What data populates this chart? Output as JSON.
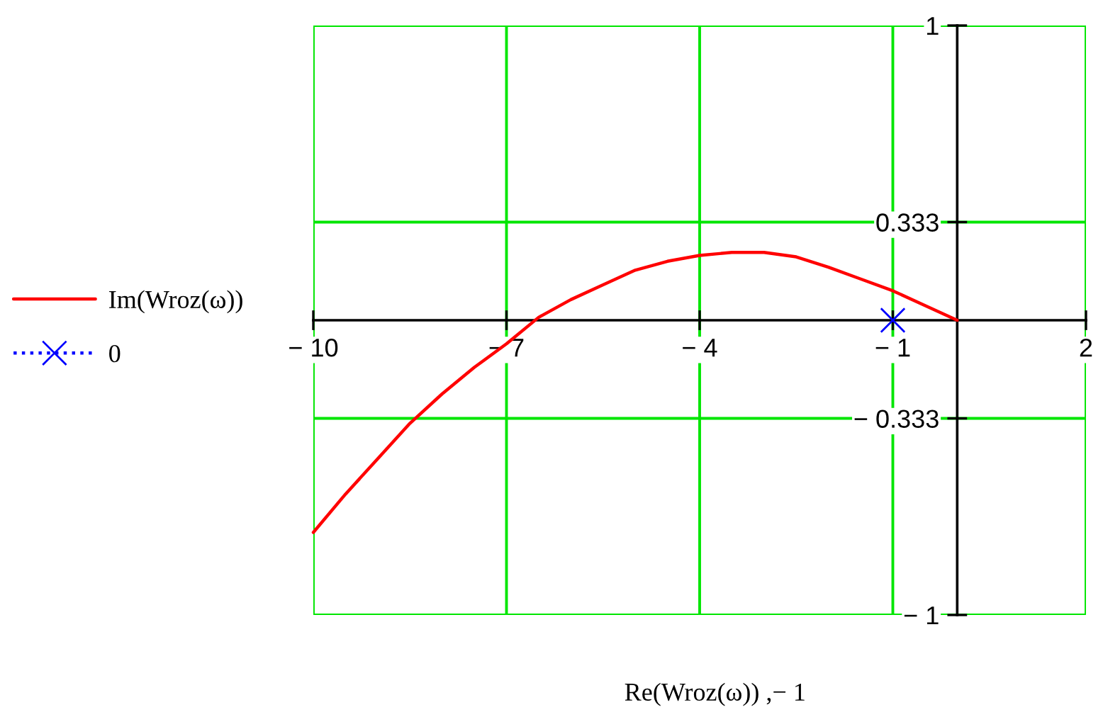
{
  "chart_data": {
    "type": "line",
    "xlabel": "Re(Wroz(ω)) ,− 1",
    "xlim": [
      -10,
      2
    ],
    "ylim": [
      -1,
      1
    ],
    "xticks": [
      {
        "value": -10,
        "label": "− 10"
      },
      {
        "value": -7,
        "label": "− 7"
      },
      {
        "value": -4,
        "label": "− 4"
      },
      {
        "value": -1,
        "label": "− 1"
      },
      2
    ],
    "yticks": [
      {
        "value": -1,
        "label": "− 1"
      },
      {
        "value": -0.333,
        "label": "− 0.333"
      },
      0.333,
      1
    ],
    "grid": true,
    "legend": "left",
    "series": [
      {
        "name": "Im(Wroz(ω))",
        "color": "#ff0000",
        "line_style": "solid",
        "marker": "none",
        "x": [
          -10,
          -9.5,
          -9,
          -8.5,
          -8,
          -7.5,
          -7,
          -6.5,
          -6,
          -5.5,
          -5,
          -4.5,
          -4,
          -3.5,
          -3,
          -2.5,
          -2,
          -1.5,
          -1,
          -0.5,
          0
        ],
        "values": [
          -0.72,
          -0.59,
          -0.47,
          -0.35,
          -0.25,
          -0.16,
          -0.08,
          0.01,
          0.07,
          0.12,
          0.17,
          0.2,
          0.22,
          0.23,
          0.23,
          0.215,
          0.18,
          0.14,
          0.1,
          0.05,
          0
        ]
      },
      {
        "name": "0",
        "color": "#0000ff",
        "line_style": "dotted",
        "marker": "cross",
        "x": [
          -1
        ],
        "values": [
          0
        ]
      }
    ]
  }
}
